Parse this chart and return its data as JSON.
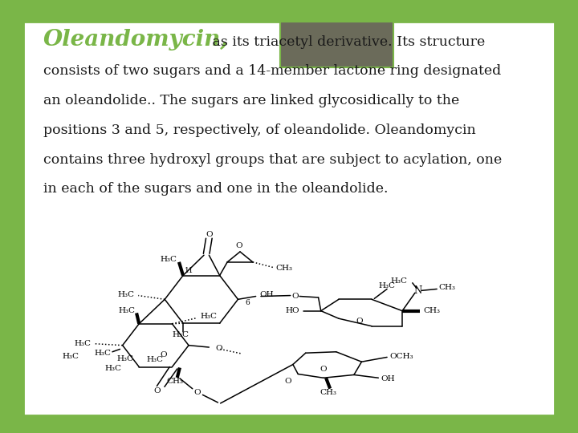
{
  "background_color": "#7ab648",
  "slide_bg": "#ffffff",
  "header_rect_color": "#6b6b5a",
  "title_word": "Oleandomycin",
  "title_color": "#7ab648",
  "title_fontsize": 20,
  "body_fontsize": 12.5,
  "body_color": "#1a1a1a",
  "body_lines": [
    ", as its triacetyl derivative. Its structure",
    "consists of two sugars and a 14-member lactone ring designated",
    "an oleandolide.. The sugars are linked glycosidically to the",
    "positions 3 and 5, respectively, of oleandolide. Oleandomycin",
    "contains three hydroxyl groups that are subject to acylation, one",
    "in each of the sugars and one in the oleandolide."
  ]
}
